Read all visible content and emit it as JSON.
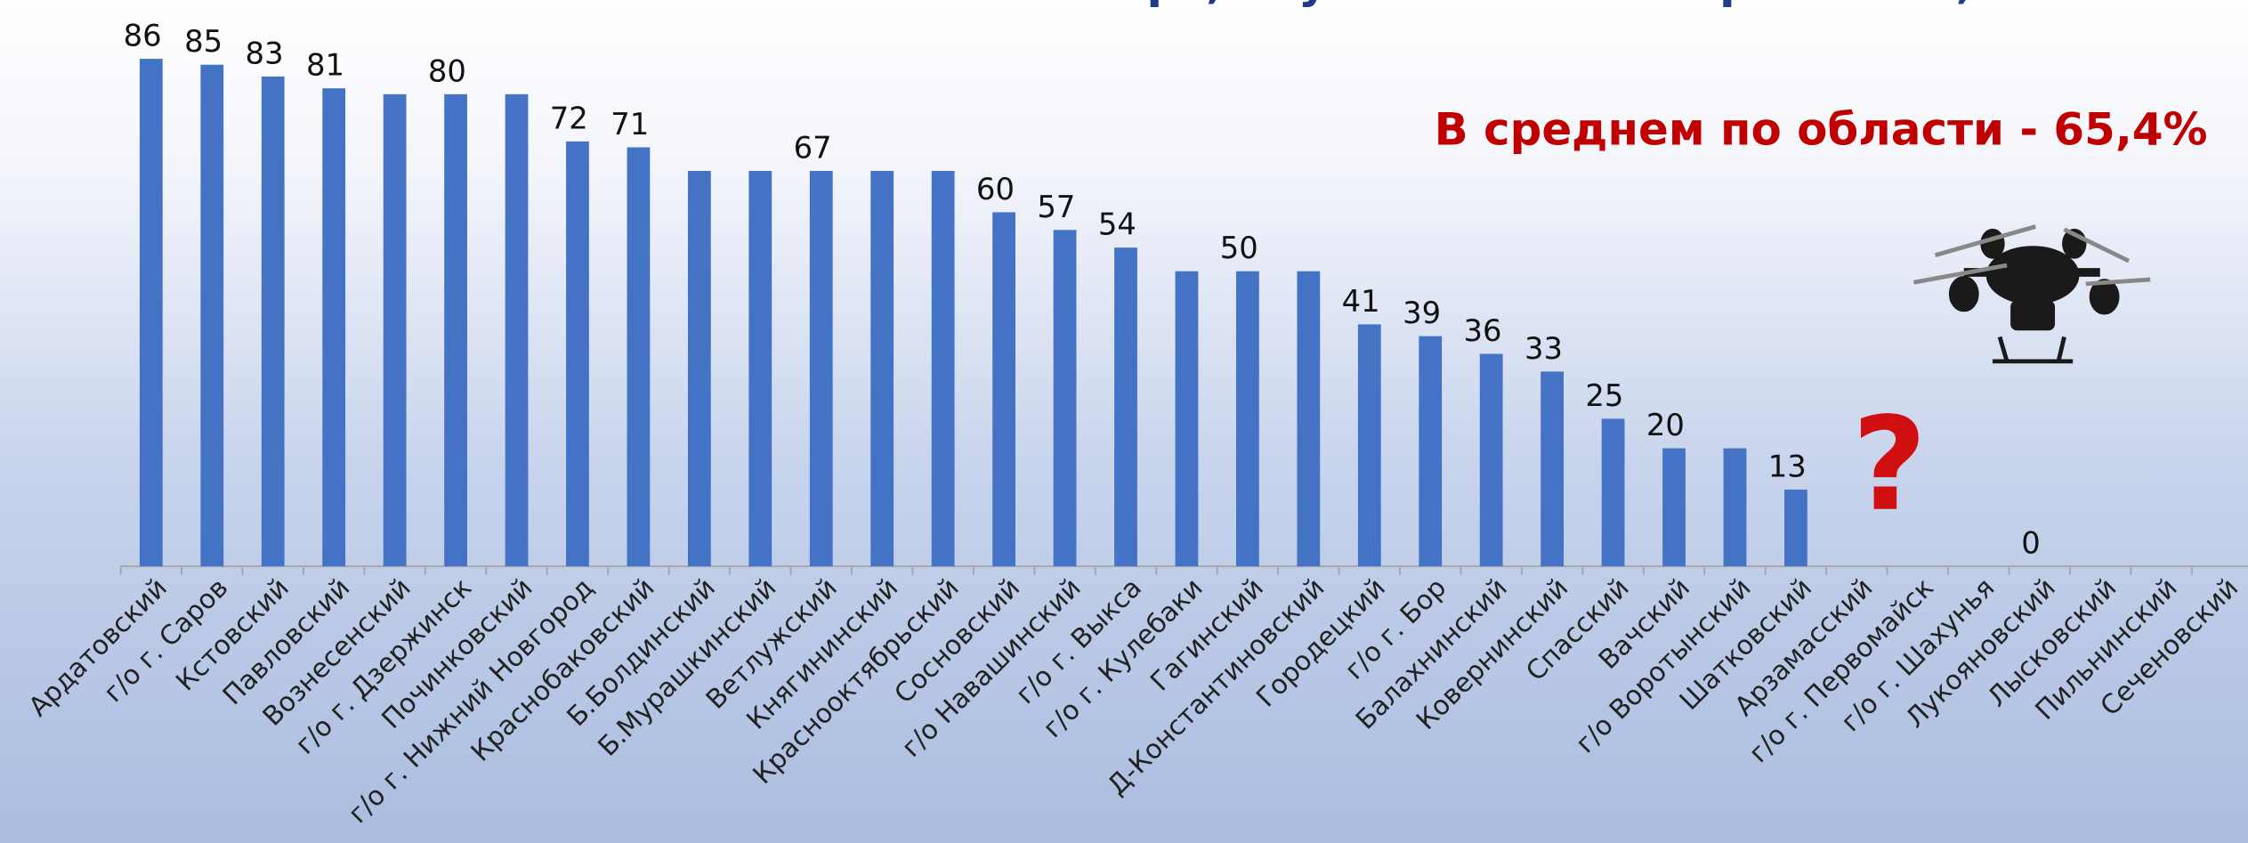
{
  "chart_data": {
    "type": "bar",
    "title": "планов и карт, спутниковых изображений, %",
    "annotations": [
      "В среднем по области - 65,4%",
      "?"
    ],
    "categories": [
      "Ардатовский",
      "г/о г. Саров",
      "Кстовский",
      "Павловский",
      "Вознесенский",
      "г/о г. Дзержинск",
      "Починковский",
      "г/о г. Нижний Новгород",
      "Краснобаковский",
      "Б.Болдинский",
      "Б.Мурашкинский",
      "Ветлужский",
      "Княгининский",
      "Краснооктябрьский",
      "Сосновский",
      "г/о Навашинский",
      "г/о г. Выкса",
      "г/о г. Кулебаки",
      "Гагинский",
      "Д-Константиновский",
      "Городецкий",
      "г/о г. Бор",
      "Балахнинский",
      "Ковернинский",
      "Спасский",
      "Вачский",
      "г/о Воротынский",
      "Шатковский",
      "Арзамасский",
      "г/о г. Первомайск",
      "г/о г. Шахунья",
      "Лукояновский",
      "Лысковский",
      "Пильнинский",
      "Сеченовский"
    ],
    "values": [
      86,
      85,
      83,
      81,
      80,
      80,
      80,
      72,
      71,
      67,
      67,
      67,
      67,
      67,
      60,
      57,
      54,
      50,
      50,
      50,
      41,
      39,
      36,
      33,
      25,
      20,
      20,
      13,
      null,
      null,
      null,
      0,
      null,
      null,
      null
    ],
    "value_labels": [
      "86",
      "85",
      "83",
      "81",
      null,
      "80",
      null,
      "72",
      "71",
      null,
      null,
      "67",
      null,
      null,
      "60",
      "57",
      "54",
      null,
      "50",
      null,
      "41",
      "39",
      "36",
      "33",
      "25",
      "20",
      null,
      "13",
      null,
      null,
      null,
      "0",
      null,
      null,
      null
    ],
    "color": "#4472c4",
    "ylim": [
      0,
      100
    ]
  }
}
